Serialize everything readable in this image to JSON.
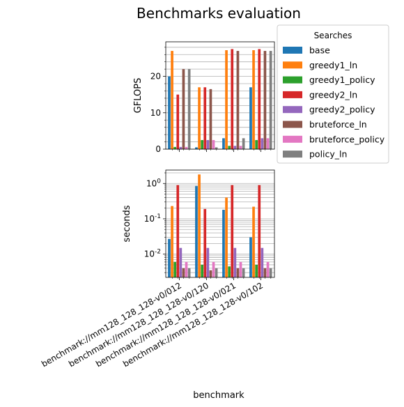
{
  "chart_data": {
    "title": "Benchmarks evaluation",
    "xlabel": "benchmark",
    "type": "bar",
    "categories": [
      "benchmark://mm128_128_128-v0/012",
      "benchmark://mm128_128_128-v0/120",
      "benchmark://mm128_128_128-v0/021",
      "benchmark://mm128_128_128-v0/102"
    ],
    "legend": {
      "title": "Searches",
      "placement": "outside-right-top",
      "entries": [
        "base",
        "greedy1_ln",
        "greedy1_policy",
        "greedy2_ln",
        "greedy2_policy",
        "bruteforce_ln",
        "bruteforce_policy",
        "policy_ln"
      ]
    },
    "colors": [
      "#1f77b4",
      "#ff7f0e",
      "#2ca02c",
      "#d62728",
      "#9467bd",
      "#8c564b",
      "#e377c2",
      "#7f7f7f"
    ],
    "panels": [
      {
        "ylabel": "GFLOPS",
        "scale": "linear",
        "ylim": [
          0,
          29.5
        ],
        "yticks": [
          0,
          10,
          20
        ],
        "grid": "y, major and minor",
        "series": [
          {
            "name": "base",
            "values": [
              20.0,
              0.5,
              3.0,
              17.0
            ]
          },
          {
            "name": "greedy1_ln",
            "values": [
              27.0,
              17.0,
              27.2,
              27.2
            ]
          },
          {
            "name": "greedy1_policy",
            "values": [
              0.6,
              2.5,
              0.9,
              2.5
            ]
          },
          {
            "name": "greedy2_ln",
            "values": [
              15.0,
              17.0,
              27.5,
              27.5
            ]
          },
          {
            "name": "greedy2_policy",
            "values": [
              0.6,
              2.5,
              0.9,
              3.0
            ]
          },
          {
            "name": "bruteforce_ln",
            "values": [
              22.0,
              16.5,
              27.0,
              27.0
            ]
          },
          {
            "name": "bruteforce_policy",
            "values": [
              0.6,
              2.5,
              0.9,
              3.0
            ]
          },
          {
            "name": "policy_ln",
            "values": [
              22.0,
              0.5,
              3.0,
              27.0
            ]
          }
        ]
      },
      {
        "ylabel": "seconds",
        "scale": "log",
        "ylim": [
          0.0022,
          2.4
        ],
        "yticks": [
          0.01,
          0.1,
          1
        ],
        "ytick_labels": [
          "10^-2",
          "10^-1",
          "10^0"
        ],
        "grid": "y, major and minor",
        "series": [
          {
            "name": "base",
            "values": [
              0.027,
              0.85,
              0.18,
              0.03
            ]
          },
          {
            "name": "greedy1_ln",
            "values": [
              0.23,
              1.8,
              0.4,
              0.22
            ]
          },
          {
            "name": "greedy1_policy",
            "values": [
              0.006,
              0.005,
              0.0045,
              0.005
            ]
          },
          {
            "name": "greedy2_ln",
            "values": [
              0.9,
              0.19,
              0.9,
              0.9
            ]
          },
          {
            "name": "greedy2_policy",
            "values": [
              0.015,
              0.015,
              0.015,
              0.015
            ]
          },
          {
            "name": "bruteforce_ln",
            "values": [
              0.004,
              0.0035,
              0.004,
              0.004
            ]
          },
          {
            "name": "bruteforce_policy",
            "values": [
              0.006,
              0.006,
              0.006,
              0.006
            ]
          },
          {
            "name": "policy_ln",
            "values": [
              0.004,
              0.004,
              0.004,
              0.004
            ]
          }
        ]
      }
    ]
  }
}
